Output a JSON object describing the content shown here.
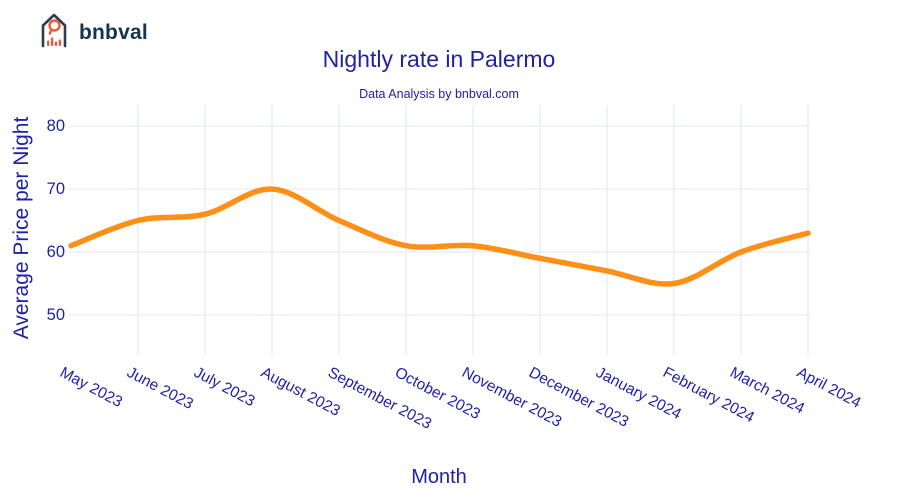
{
  "logo": {
    "text": "bnbval"
  },
  "header": {
    "title": "Nightly rate in Palermo",
    "subtitle": "Data Analysis by bnbval.com"
  },
  "chart_data": {
    "type": "line",
    "title": "Nightly rate in Palermo",
    "subtitle": "Data Analysis by bnbval.com",
    "xlabel": "Month",
    "ylabel": "Average Price per Night",
    "categories": [
      "May 2023",
      "June 2023",
      "July 2023",
      "August 2023",
      "September 2023",
      "October 2023",
      "November 2023",
      "December 2023",
      "January 2024",
      "February 2024",
      "March 2024",
      "April 2024"
    ],
    "series": [
      {
        "name": "Average Price per Night",
        "values": [
          61,
          65,
          66,
          70,
          65,
          61,
          61,
          59,
          57,
          55,
          60,
          63
        ]
      }
    ],
    "yticks": [
      80,
      70,
      60,
      50
    ],
    "ylim": [
      44,
      83
    ],
    "grid": true,
    "legend": false,
    "line_style": "smooth"
  },
  "colors": {
    "background": "#ffffff",
    "text": "#2121a4",
    "grid": "#e8ecf7",
    "line": "#ff8f17",
    "logo_outline": "#2d3e50",
    "logo_accent": "#ee5a3f",
    "logo_text": "#17344f"
  }
}
